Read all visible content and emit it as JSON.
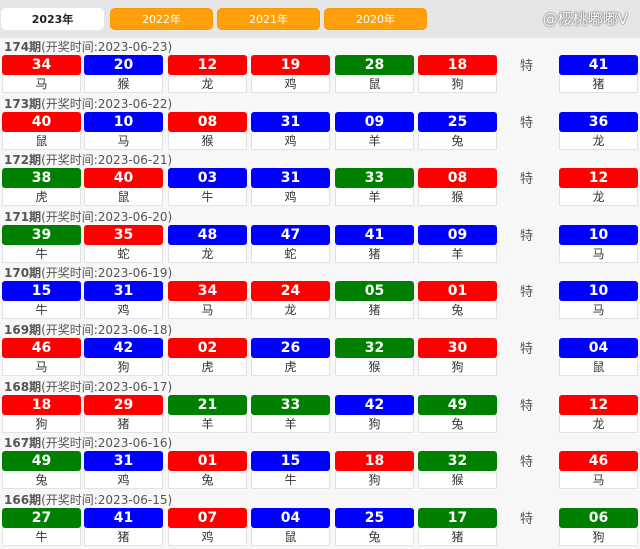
{
  "tabs": [
    {
      "label": "2023年",
      "active": true
    },
    {
      "label": "2022年"
    },
    {
      "label": "2021年"
    },
    {
      "label": "2020年"
    }
  ],
  "colors": {
    "red": "#ff0000",
    "blue": "#0000ff",
    "green": "#008000",
    "tab": "#ffa00a"
  },
  "special_label": "特",
  "draws": [
    {
      "issue": "174期",
      "time": "(开奖时间:2023-06-23)",
      "balls": [
        [
          "34",
          "red",
          "马"
        ],
        [
          "20",
          "blue",
          "猴"
        ],
        [
          "12",
          "red",
          "龙"
        ],
        [
          "19",
          "red",
          "鸡"
        ],
        [
          "28",
          "green",
          "鼠"
        ],
        [
          "18",
          "red",
          "狗"
        ]
      ],
      "special": [
        "41",
        "blue",
        "猪"
      ]
    },
    {
      "issue": "173期",
      "time": "(开奖时间:2023-06-22)",
      "balls": [
        [
          "40",
          "red",
          "鼠"
        ],
        [
          "10",
          "blue",
          "马"
        ],
        [
          "08",
          "red",
          "猴"
        ],
        [
          "31",
          "blue",
          "鸡"
        ],
        [
          "09",
          "blue",
          "羊"
        ],
        [
          "25",
          "blue",
          "兔"
        ]
      ],
      "special": [
        "36",
        "blue",
        "龙"
      ]
    },
    {
      "issue": "172期",
      "time": "(开奖时间:2023-06-21)",
      "balls": [
        [
          "38",
          "green",
          "虎"
        ],
        [
          "40",
          "red",
          "鼠"
        ],
        [
          "03",
          "blue",
          "牛"
        ],
        [
          "31",
          "blue",
          "鸡"
        ],
        [
          "33",
          "green",
          "羊"
        ],
        [
          "08",
          "red",
          "猴"
        ]
      ],
      "special": [
        "12",
        "red",
        "龙"
      ]
    },
    {
      "issue": "171期",
      "time": "(开奖时间:2023-06-20)",
      "balls": [
        [
          "39",
          "green",
          "牛"
        ],
        [
          "35",
          "red",
          "蛇"
        ],
        [
          "48",
          "blue",
          "龙"
        ],
        [
          "47",
          "blue",
          "蛇"
        ],
        [
          "41",
          "blue",
          "猪"
        ],
        [
          "09",
          "blue",
          "羊"
        ]
      ],
      "special": [
        "10",
        "blue",
        "马"
      ]
    },
    {
      "issue": "170期",
      "time": "(开奖时间:2023-06-19)",
      "balls": [
        [
          "15",
          "blue",
          "牛"
        ],
        [
          "31",
          "blue",
          "鸡"
        ],
        [
          "34",
          "red",
          "马"
        ],
        [
          "24",
          "red",
          "龙"
        ],
        [
          "05",
          "green",
          "猪"
        ],
        [
          "01",
          "red",
          "兔"
        ]
      ],
      "special": [
        "10",
        "blue",
        "马"
      ]
    },
    {
      "issue": "169期",
      "time": "(开奖时间:2023-06-18)",
      "balls": [
        [
          "46",
          "red",
          "马"
        ],
        [
          "42",
          "blue",
          "狗"
        ],
        [
          "02",
          "red",
          "虎"
        ],
        [
          "26",
          "blue",
          "虎"
        ],
        [
          "32",
          "green",
          "猴"
        ],
        [
          "30",
          "red",
          "狗"
        ]
      ],
      "special": [
        "04",
        "blue",
        "鼠"
      ]
    },
    {
      "issue": "168期",
      "time": "(开奖时间:2023-06-17)",
      "balls": [
        [
          "18",
          "red",
          "狗"
        ],
        [
          "29",
          "red",
          "猪"
        ],
        [
          "21",
          "green",
          "羊"
        ],
        [
          "33",
          "green",
          "羊"
        ],
        [
          "42",
          "blue",
          "狗"
        ],
        [
          "49",
          "green",
          "兔"
        ]
      ],
      "special": [
        "12",
        "red",
        "龙"
      ]
    },
    {
      "issue": "167期",
      "time": "(开奖时间:2023-06-16)",
      "balls": [
        [
          "49",
          "green",
          "兔"
        ],
        [
          "31",
          "blue",
          "鸡"
        ],
        [
          "01",
          "red",
          "兔"
        ],
        [
          "15",
          "blue",
          "牛"
        ],
        [
          "18",
          "red",
          "狗"
        ],
        [
          "32",
          "green",
          "猴"
        ]
      ],
      "special": [
        "46",
        "red",
        "马"
      ]
    },
    {
      "issue": "166期",
      "time": "(开奖时间:2023-06-15)",
      "balls": [
        [
          "27",
          "green",
          "牛"
        ],
        [
          "41",
          "blue",
          "猪"
        ],
        [
          "07",
          "red",
          "鸡"
        ],
        [
          "04",
          "blue",
          "鼠"
        ],
        [
          "25",
          "blue",
          "兔"
        ],
        [
          "17",
          "green",
          "猪"
        ]
      ],
      "special": [
        "06",
        "green",
        "狗"
      ]
    }
  ],
  "watermark": "@樱桃嘟嘟V"
}
